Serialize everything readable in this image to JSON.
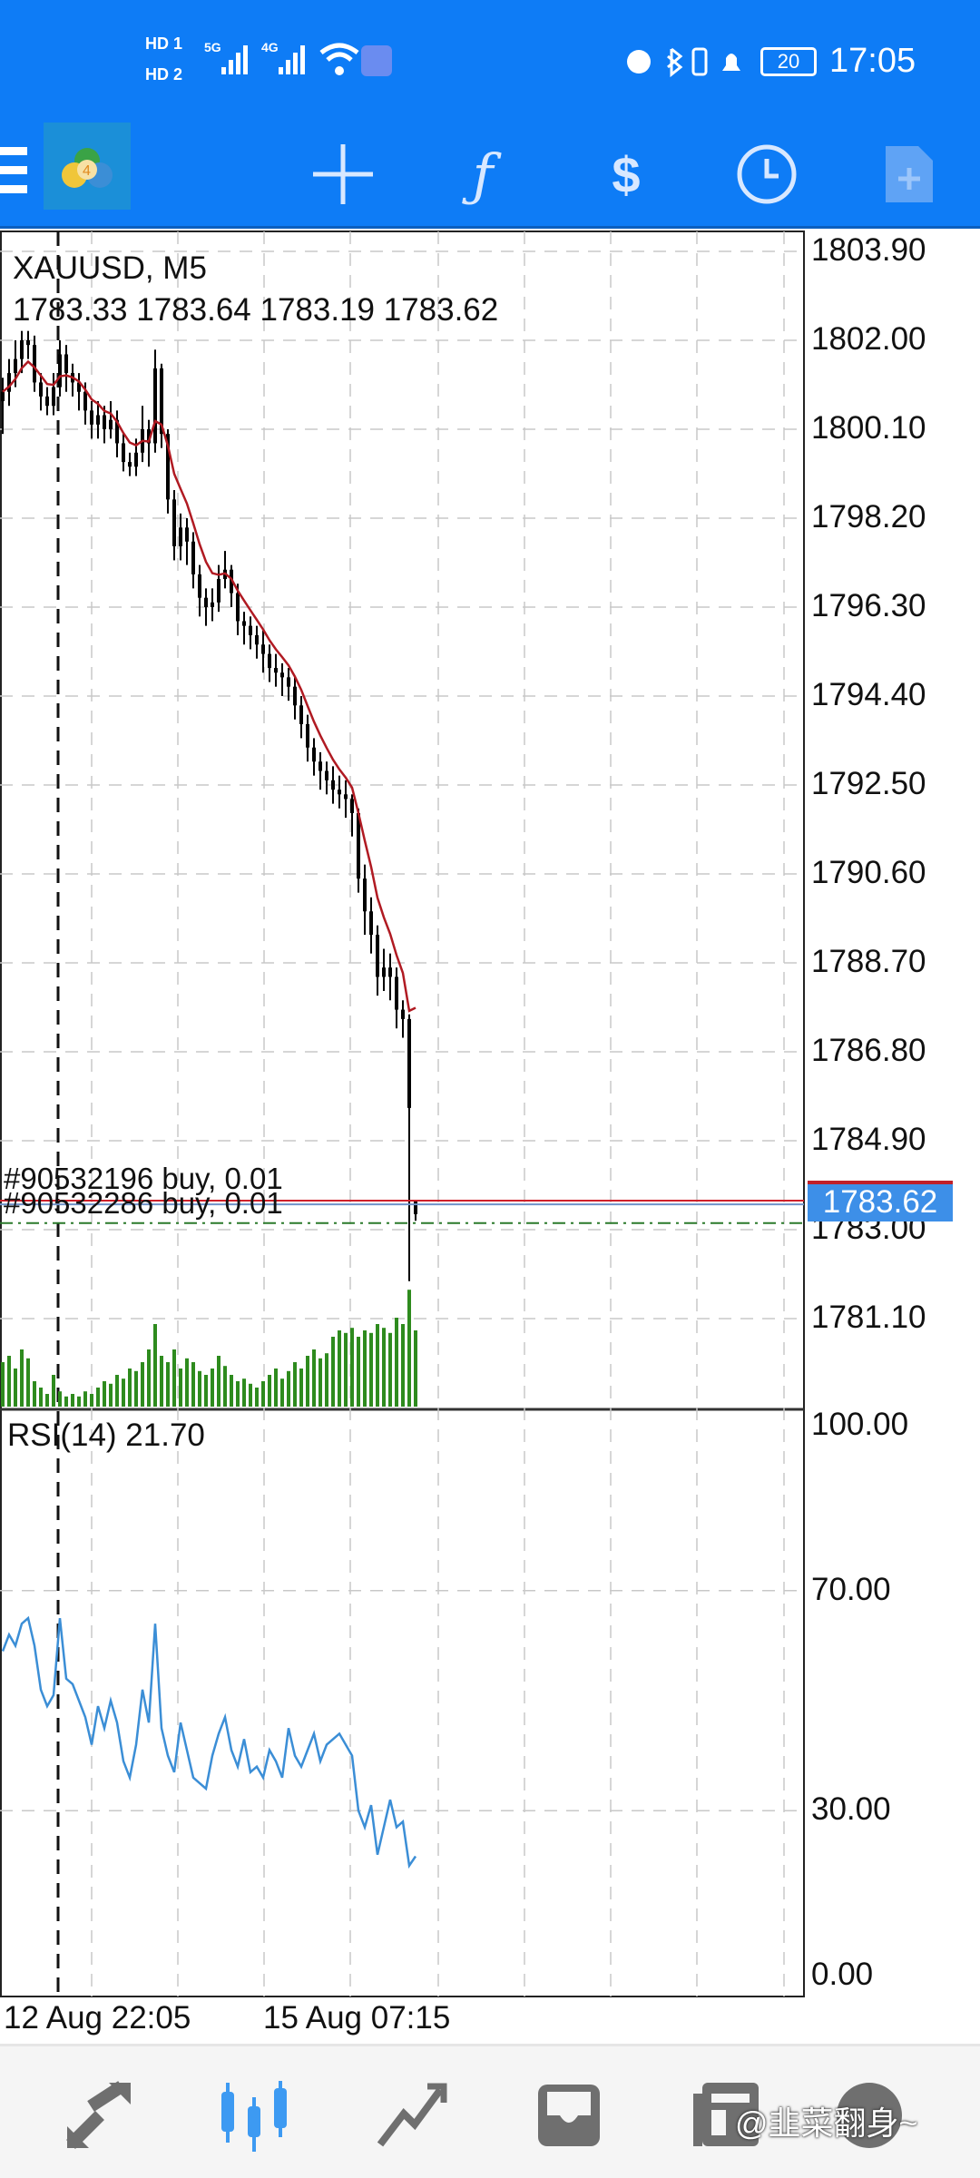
{
  "status_bar": {
    "time": "17:05",
    "battery": "20",
    "sim1": "HD 1",
    "sim2": "HD 2",
    "net1": "5G",
    "net2": "4G"
  },
  "toolbar": {
    "icons": [
      "menu-icon",
      "metatrader-logo",
      "crosshair-icon",
      "indicators-icon",
      "trade-icon",
      "timeframe-clock-icon",
      "new-order-icon"
    ]
  },
  "chart": {
    "symbol_label": "XAUUSD, M5",
    "ohlc_label": "1783.33 1783.64 1783.19 1783.62",
    "current_price": "1783.62",
    "price_ticks": [
      "1803.90",
      "1802.00",
      "1800.10",
      "1798.20",
      "1796.30",
      "1794.40",
      "1792.50",
      "1790.60",
      "1788.70",
      "1786.80",
      "1784.90",
      "1783.00",
      "1781.10"
    ],
    "orders": [
      {
        "label": "#90532196 buy, 0.01",
        "price": 1783.62
      },
      {
        "label": "#90532286 buy, 0.01",
        "price": 1783.58
      }
    ],
    "dash_dot_level": 1783.14,
    "colors": {
      "bid_line": "#d0202a",
      "order_line": "#6f93c9",
      "ma": "#b01a22",
      "volume": "#2e8b1e",
      "rsi": "#3b8ed6",
      "price_box": "#3d8fe8",
      "dash_dot": "#2a7a2a"
    },
    "time_labels": [
      "12 Aug 22:05",
      "15 Aug 07:15"
    ]
  },
  "chart_data": {
    "type": "candlestick",
    "ylim": [
      1780.2,
      1804.8
    ],
    "candles": [
      [
        1800.7,
        1801.2,
        1800.0,
        1800.9
      ],
      [
        1800.9,
        1801.6,
        1800.6,
        1801.3
      ],
      [
        1801.3,
        1802.0,
        1801.0,
        1801.6
      ],
      [
        1801.6,
        1802.2,
        1801.3,
        1802.0
      ],
      [
        1802.0,
        1802.2,
        1801.6,
        1801.9
      ],
      [
        1801.9,
        1802.1,
        1800.9,
        1801.1
      ],
      [
        1801.1,
        1801.3,
        1800.5,
        1800.8
      ],
      [
        1800.8,
        1801.0,
        1800.4,
        1800.6
      ],
      [
        1800.6,
        1801.3,
        1800.4,
        1801.0
      ],
      [
        1801.0,
        1802.0,
        1800.8,
        1801.7
      ],
      [
        1801.7,
        1801.9,
        1800.9,
        1801.3
      ],
      [
        1801.3,
        1801.5,
        1800.8,
        1801.1
      ],
      [
        1801.1,
        1801.3,
        1800.5,
        1800.9
      ],
      [
        1800.9,
        1801.1,
        1800.2,
        1800.5
      ],
      [
        1800.5,
        1800.7,
        1799.9,
        1800.2
      ],
      [
        1800.2,
        1800.7,
        1799.9,
        1800.4
      ],
      [
        1800.4,
        1800.6,
        1799.8,
        1800.1
      ],
      [
        1800.1,
        1800.7,
        1799.9,
        1800.3
      ],
      [
        1800.3,
        1800.5,
        1799.5,
        1799.8
      ],
      [
        1799.8,
        1800.0,
        1799.2,
        1799.4
      ],
      [
        1799.4,
        1799.6,
        1799.1,
        1799.3
      ],
      [
        1799.3,
        1799.9,
        1799.1,
        1799.6
      ],
      [
        1799.6,
        1800.6,
        1799.4,
        1800.1
      ],
      [
        1800.1,
        1800.3,
        1799.3,
        1799.8
      ],
      [
        1799.8,
        1801.8,
        1799.6,
        1801.4
      ],
      [
        1801.4,
        1801.5,
        1799.7,
        1800.0
      ],
      [
        1800.0,
        1800.1,
        1798.3,
        1798.6
      ],
      [
        1798.6,
        1798.8,
        1797.3,
        1797.6
      ],
      [
        1797.6,
        1798.3,
        1797.3,
        1798.0
      ],
      [
        1798.0,
        1798.2,
        1797.2,
        1797.7
      ],
      [
        1797.7,
        1797.9,
        1796.7,
        1797.0
      ],
      [
        1797.0,
        1797.2,
        1796.1,
        1796.5
      ],
      [
        1796.5,
        1796.7,
        1795.9,
        1796.3
      ],
      [
        1796.3,
        1796.7,
        1796.0,
        1796.4
      ],
      [
        1796.4,
        1797.2,
        1796.2,
        1796.9
      ],
      [
        1796.9,
        1797.5,
        1796.7,
        1797.1
      ],
      [
        1797.1,
        1797.2,
        1796.3,
        1796.6
      ],
      [
        1796.6,
        1796.8,
        1795.7,
        1796.0
      ],
      [
        1796.0,
        1796.2,
        1795.5,
        1795.9
      ],
      [
        1795.9,
        1796.1,
        1795.4,
        1795.7
      ],
      [
        1795.7,
        1795.9,
        1795.2,
        1795.5
      ],
      [
        1795.5,
        1795.8,
        1794.9,
        1795.3
      ],
      [
        1795.3,
        1795.5,
        1794.7,
        1795.0
      ],
      [
        1795.0,
        1795.3,
        1794.6,
        1794.9
      ],
      [
        1794.9,
        1795.1,
        1794.4,
        1794.8
      ],
      [
        1794.8,
        1795.0,
        1794.3,
        1794.6
      ],
      [
        1794.6,
        1794.8,
        1793.9,
        1794.2
      ],
      [
        1794.2,
        1794.4,
        1793.5,
        1793.8
      ],
      [
        1793.8,
        1794.0,
        1793.0,
        1793.3
      ],
      [
        1793.3,
        1793.5,
        1792.7,
        1793.0
      ],
      [
        1793.0,
        1793.2,
        1792.4,
        1792.8
      ],
      [
        1792.8,
        1793.0,
        1792.3,
        1792.6
      ],
      [
        1792.6,
        1792.9,
        1792.1,
        1792.4
      ],
      [
        1792.4,
        1792.7,
        1792.0,
        1792.3
      ],
      [
        1792.3,
        1792.6,
        1791.8,
        1792.2
      ],
      [
        1792.2,
        1792.3,
        1791.4,
        1791.9
      ],
      [
        1791.9,
        1792.0,
        1790.2,
        1790.5
      ],
      [
        1790.5,
        1790.8,
        1789.3,
        1789.8
      ],
      [
        1789.8,
        1790.1,
        1788.9,
        1789.3
      ],
      [
        1789.3,
        1789.5,
        1788.0,
        1788.4
      ],
      [
        1788.4,
        1789.0,
        1788.1,
        1788.6
      ],
      [
        1788.6,
        1788.9,
        1787.9,
        1788.4
      ],
      [
        1788.4,
        1788.6,
        1787.3,
        1787.7
      ],
      [
        1787.7,
        1787.9,
        1787.1,
        1787.5
      ],
      [
        1787.5,
        1787.6,
        1781.9,
        1785.6
      ],
      [
        1783.33,
        1783.64,
        1783.19,
        1783.62
      ]
    ],
    "volume_relative": [
      35,
      40,
      30,
      45,
      38,
      20,
      15,
      10,
      25,
      12,
      8,
      10,
      8,
      12,
      10,
      15,
      20,
      18,
      25,
      22,
      30,
      28,
      35,
      45,
      65,
      40,
      35,
      45,
      30,
      38,
      35,
      28,
      25,
      30,
      40,
      32,
      25,
      20,
      22,
      18,
      15,
      20,
      25,
      30,
      22,
      28,
      35,
      30,
      40,
      45,
      38,
      42,
      55,
      60,
      58,
      62,
      55,
      60,
      58,
      65,
      62,
      58,
      70,
      65,
      92,
      60
    ],
    "rsi": {
      "label": "RSI(14) 21.70",
      "ylim": [
        0,
        100
      ],
      "ticks": [
        "100.00",
        "70.00",
        "30.00",
        "0.00"
      ],
      "values": [
        59,
        62,
        60,
        64,
        65,
        60,
        52,
        49,
        51,
        65,
        54,
        53,
        50,
        47,
        42,
        49,
        45,
        50,
        46,
        39,
        36,
        42,
        52,
        46,
        64,
        45,
        40,
        37,
        46,
        41,
        36,
        35,
        34,
        40,
        44,
        47,
        41,
        38,
        43,
        37,
        38,
        36,
        41,
        39,
        36,
        45,
        40,
        38,
        41,
        44,
        39,
        42,
        43,
        44,
        42,
        40,
        30,
        27,
        31,
        22,
        27,
        32,
        27,
        28,
        20,
        21.7
      ]
    }
  },
  "bottom_nav": {
    "items": [
      "quotes-icon",
      "chart-icon",
      "trade-icon",
      "history-icon",
      "news-icon",
      "messages-icon"
    ],
    "active": "chart-icon",
    "watermark": "@韭菜翻身~"
  }
}
